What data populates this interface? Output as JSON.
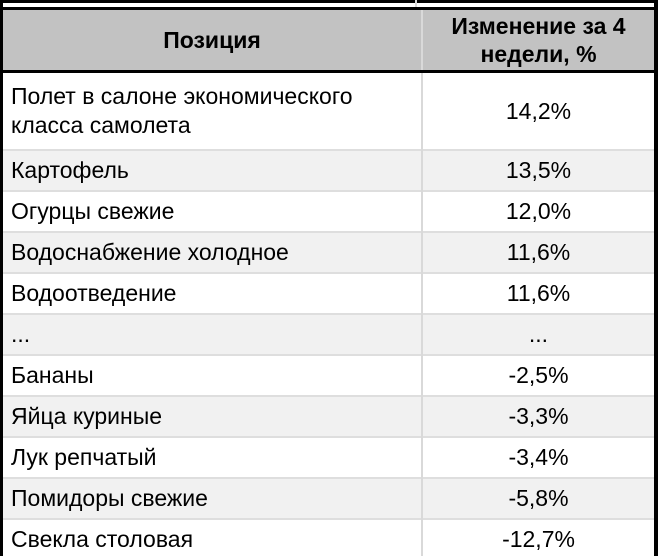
{
  "table": {
    "columns": [
      {
        "label": "Позиция"
      },
      {
        "label": "Изменение за 4 недели, %"
      }
    ],
    "rows": [
      {
        "position": "Полет в салоне экономического класса самолета",
        "change": "14,2%"
      },
      {
        "position": "Картофель",
        "change": "13,5%"
      },
      {
        "position": "Огурцы свежие",
        "change": "12,0%"
      },
      {
        "position": "Водоснабжение холодное",
        "change": "11,6%"
      },
      {
        "position": "Водоотведение",
        "change": "11,6%"
      },
      {
        "position": "...",
        "change": "..."
      },
      {
        "position": "Бананы",
        "change": "-2,5%"
      },
      {
        "position": "Яйца куриные",
        "change": "-3,3%"
      },
      {
        "position": "Лук репчатый",
        "change": "-3,4%"
      },
      {
        "position": "Помидоры свежие",
        "change": "-5,8%"
      },
      {
        "position": "Свекла столовая",
        "change": "-12,7%"
      }
    ]
  },
  "chart_data": {
    "type": "table",
    "title": "",
    "columns": [
      "Позиция",
      "Изменение за 4 недели, %"
    ],
    "rows": [
      [
        "Полет в салоне экономического класса самолета",
        "14,2%"
      ],
      [
        "Картофель",
        "13,5%"
      ],
      [
        "Огурцы свежие",
        "12,0%"
      ],
      [
        "Водоснабжение холодное",
        "11,6%"
      ],
      [
        "Водоотведение",
        "11,6%"
      ],
      [
        "...",
        "..."
      ],
      [
        "Бананы",
        "-2,5%"
      ],
      [
        "Яйца куриные",
        "-3,3%"
      ],
      [
        "Лук репчатый",
        "-3,4%"
      ],
      [
        "Помидоры свежие",
        "-5,8%"
      ],
      [
        "Свекла столовая",
        "-12,7%"
      ]
    ],
    "numeric_changes_pct": [
      14.2,
      13.5,
      12.0,
      11.6,
      11.6,
      null,
      -2.5,
      -3.3,
      -3.4,
      -5.8,
      -12.7
    ]
  },
  "colors": {
    "header_bg": "#c2c2c2",
    "stripe_bg": "#f1f1f1",
    "gridline": "#d9d9d9",
    "border": "#000000",
    "text": "#000000"
  }
}
